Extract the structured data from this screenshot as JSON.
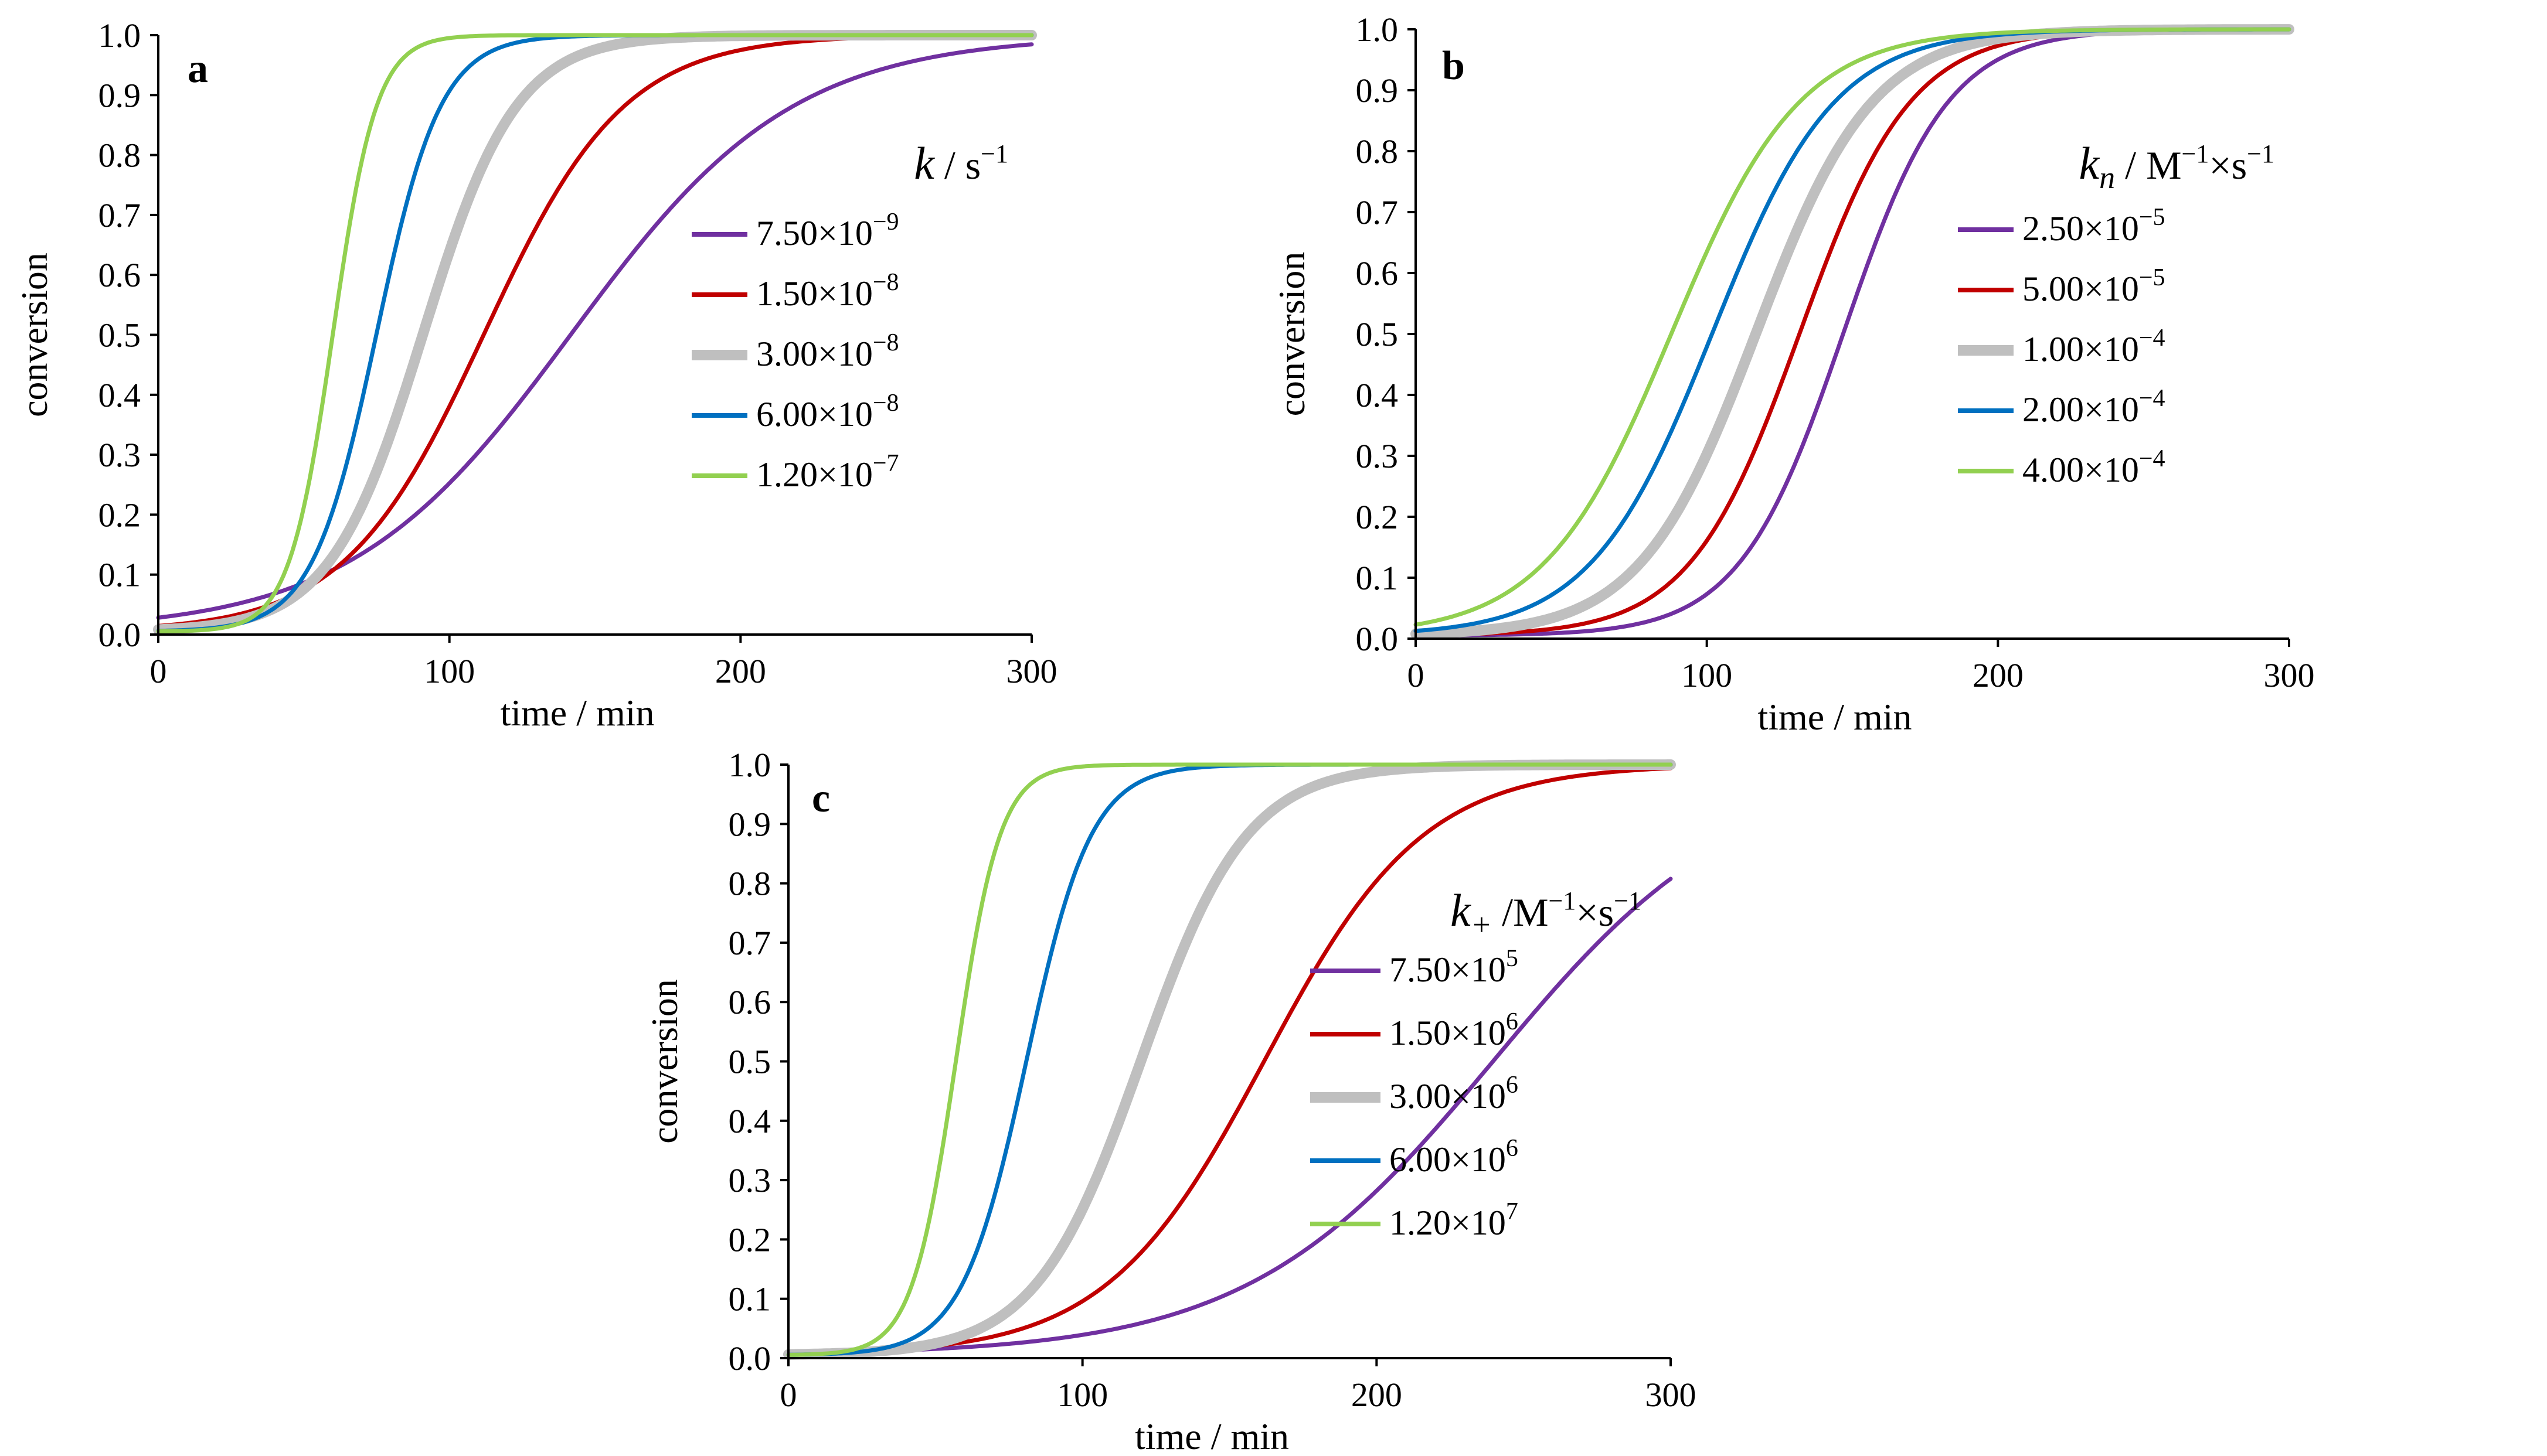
{
  "colors": {
    "purple": "#7030a0",
    "red": "#c00000",
    "gray": "#bfbfbf",
    "blue": "#0070c0",
    "green": "#92d050"
  },
  "chart_data": [
    {
      "id": "a",
      "type": "line",
      "panel_label": "a",
      "xlabel": "time / min",
      "ylabel": "conversion",
      "xlim": [
        0,
        300
      ],
      "ylim": [
        0,
        1
      ],
      "xticks": [
        "0",
        "100",
        "200",
        "300"
      ],
      "yticks": [
        "0.0",
        "0.1",
        "0.2",
        "0.3",
        "0.4",
        "0.5",
        "0.6",
        "0.7",
        "0.8",
        "0.9",
        "1.0"
      ],
      "legend": {
        "title": {
          "sym": "k",
          "unit": " / s",
          "unit_sup": "−1"
        },
        "position": "right"
      },
      "series": [
        {
          "name": "7.50×10⁻⁹",
          "base": "7.50×10",
          "exp": "−9",
          "color": "#7030a0",
          "t50": 142,
          "width": 38,
          "thick": false
        },
        {
          "name": "1.50×10⁻⁸",
          "base": "1.50×10",
          "exp": "−8",
          "color": "#c00000",
          "t50": 112,
          "width": 24,
          "thick": false
        },
        {
          "name": "3.00×10⁻⁸",
          "base": "3.00×10",
          "exp": "−8",
          "color": "#bfbfbf",
          "t50": 91,
          "width": 16,
          "thick": true
        },
        {
          "name": "6.00×10⁻⁸",
          "base": "6.00×10",
          "exp": "−8",
          "color": "#0070c0",
          "t50": 75,
          "width": 11,
          "thick": false
        },
        {
          "name": "1.20×10⁻⁷",
          "base": "1.20×10",
          "exp": "−7",
          "color": "#92d050",
          "t50": 60,
          "width": 7.5,
          "thick": false
        }
      ]
    },
    {
      "id": "b",
      "type": "line",
      "panel_label": "b",
      "xlabel": "time / min",
      "ylabel": "conversion",
      "xlim": [
        0,
        300
      ],
      "ylim": [
        0,
        1
      ],
      "xticks": [
        "0",
        "100",
        "200",
        "300"
      ],
      "yticks": [
        "0.0",
        "0.1",
        "0.2",
        "0.3",
        "0.4",
        "0.5",
        "0.6",
        "0.7",
        "0.8",
        "0.9",
        "1.0"
      ],
      "legend": {
        "title": {
          "sym": "k",
          "sub": "n",
          "unit": " / M",
          "unit_sup": "−1",
          "unit2": "×s",
          "unit2_sup": "−1"
        },
        "position": "right"
      },
      "series": [
        {
          "name": "2.50×10⁻⁵",
          "base": "2.50×10",
          "exp": "−5",
          "color": "#7030a0",
          "t50": 147,
          "width": 18,
          "thick": false
        },
        {
          "name": "5.00×10⁻⁵",
          "base": "5.00×10",
          "exp": "−5",
          "color": "#c00000",
          "t50": 132,
          "width": 19,
          "thick": false
        },
        {
          "name": "1.00×10⁻⁴",
          "base": "1.00×10",
          "exp": "−4",
          "color": "#bfbfbf",
          "t50": 117,
          "width": 20,
          "thick": true
        },
        {
          "name": "2.00×10⁻⁴",
          "base": "2.00×10",
          "exp": "−4",
          "color": "#0070c0",
          "t50": 102,
          "width": 21,
          "thick": false
        },
        {
          "name": "4.00×10⁻⁴",
          "base": "4.00×10",
          "exp": "−4",
          "color": "#92d050",
          "t50": 88,
          "width": 22,
          "thick": false
        }
      ]
    },
    {
      "id": "c",
      "type": "line",
      "panel_label": "c",
      "xlabel": "time / min",
      "ylabel": "conversion",
      "xlim": [
        0,
        300
      ],
      "ylim": [
        0,
        1
      ],
      "xticks": [
        "0",
        "100",
        "200",
        "300"
      ],
      "yticks": [
        "0.0",
        "0.1",
        "0.2",
        "0.3",
        "0.4",
        "0.5",
        "0.6",
        "0.7",
        "0.8",
        "0.9",
        "1.0"
      ],
      "legend": {
        "title": {
          "sym": "k",
          "sub": "+",
          "unit": " /M",
          "unit_sup": "−1",
          "unit2": "×s",
          "unit2_sup": "−1"
        },
        "position": "right"
      },
      "series": [
        {
          "name": "7.50×10⁵",
          "base": "7.50×10",
          "exp": "5",
          "color": "#7030a0",
          "t50": 240,
          "width": 42,
          "thick": false
        },
        {
          "name": "1.50×10⁶",
          "base": "1.50×10",
          "exp": "6",
          "color": "#c00000",
          "t50": 162,
          "width": 27,
          "thick": false
        },
        {
          "name": "3.00×10⁶",
          "base": "3.00×10",
          "exp": "6",
          "color": "#bfbfbf",
          "t50": 120,
          "width": 18,
          "thick": true
        },
        {
          "name": "6.00×10⁶",
          "base": "6.00×10",
          "exp": "6",
          "color": "#0070c0",
          "t50": 81,
          "width": 11,
          "thick": false
        },
        {
          "name": "1.20×10⁷",
          "base": "1.20×10",
          "exp": "7",
          "color": "#92d050",
          "t50": 57,
          "width": 7.5,
          "thick": false
        }
      ]
    }
  ]
}
